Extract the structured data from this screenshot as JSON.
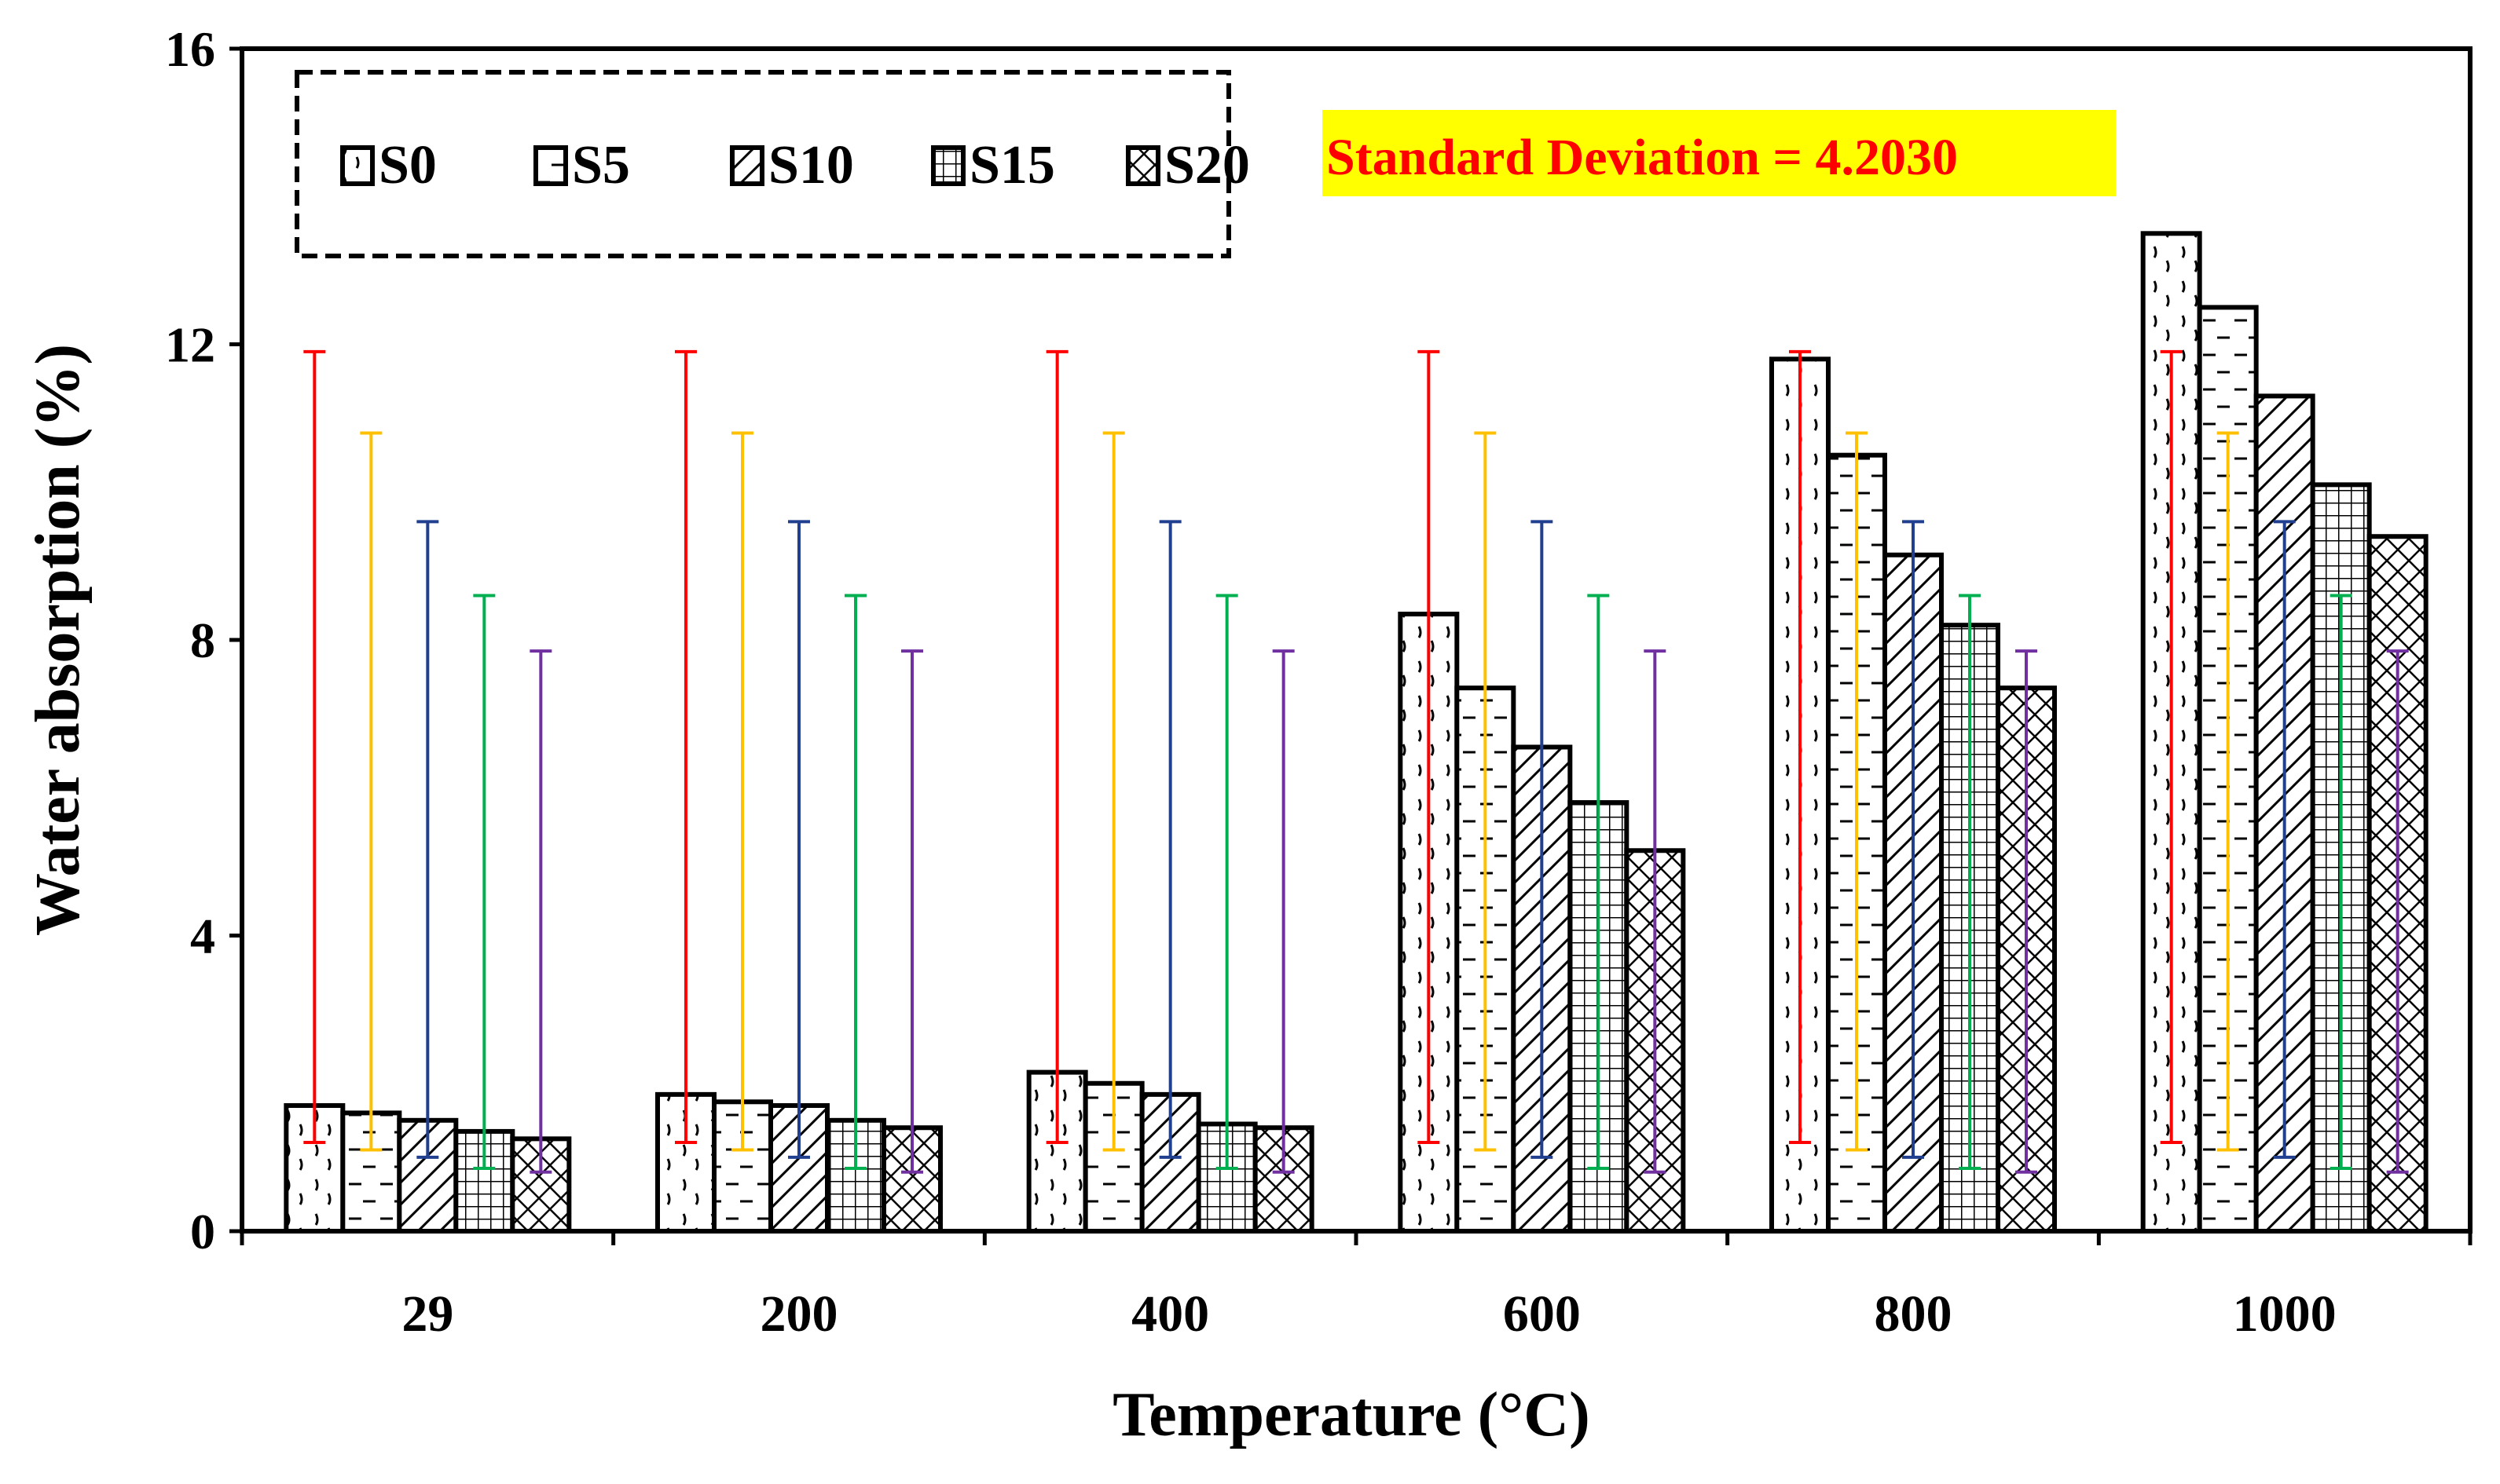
{
  "chart_data": {
    "type": "bar",
    "ylabel": "Water absorption (%)",
    "xlabel": "Temperature (°C)",
    "ylim": [
      0,
      16
    ],
    "yticks": [
      0,
      4,
      8,
      12,
      16
    ],
    "categories": [
      "29",
      "200",
      "400",
      "600",
      "800",
      "1000"
    ],
    "series": [
      {
        "name": "S0",
        "pattern": "hatch-wave",
        "error_color": "#ff0000",
        "error_range": [
          1.2,
          11.9
        ],
        "values": [
          1.7,
          1.85,
          2.15,
          8.35,
          11.8,
          13.5
        ]
      },
      {
        "name": "S5",
        "pattern": "hatch-dash",
        "error_color": "#ffc000",
        "error_range": [
          1.1,
          10.8
        ],
        "values": [
          1.6,
          1.75,
          2.0,
          7.35,
          10.5,
          12.5
        ]
      },
      {
        "name": "S10",
        "pattern": "hatch-diag",
        "error_color": "#203f8f",
        "error_range": [
          1.0,
          9.6
        ],
        "values": [
          1.5,
          1.7,
          1.85,
          6.55,
          9.15,
          11.3
        ]
      },
      {
        "name": "S15",
        "pattern": "hatch-grid",
        "error_color": "#00b050",
        "error_range": [
          0.85,
          8.6
        ],
        "values": [
          1.35,
          1.5,
          1.45,
          5.8,
          8.2,
          10.1
        ]
      },
      {
        "name": "S20",
        "pattern": "hatch-cross",
        "error_color": "#7030a0",
        "error_range": [
          0.8,
          7.85
        ],
        "values": [
          1.25,
          1.4,
          1.4,
          5.15,
          7.35,
          9.4
        ]
      }
    ],
    "annotation": {
      "text": "Standard Deviation = 4.2030",
      "text_color": "#ff0000",
      "background": "#ffff00"
    },
    "legend_position": "top-left",
    "grid": false
  }
}
